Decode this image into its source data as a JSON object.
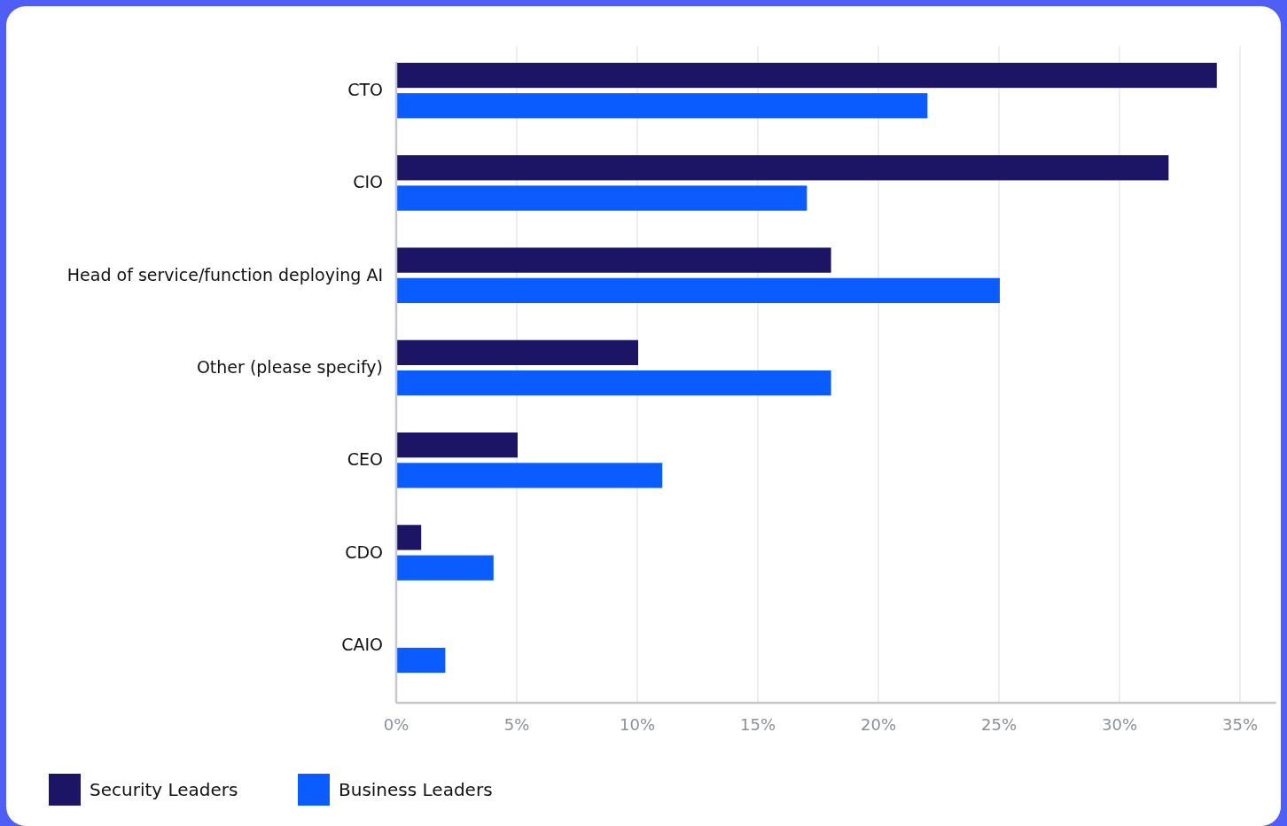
{
  "chart_data": {
    "type": "bar",
    "orientation": "horizontal",
    "categories": [
      "CTO",
      "CIO",
      "Head of service/function deploying AI",
      "Other (please specify)",
      "CEO",
      "CDO",
      "CAIO"
    ],
    "series": [
      {
        "name": "Security Leaders",
        "color": "#1c1464",
        "values": [
          34,
          32,
          18,
          10,
          5,
          1,
          0
        ]
      },
      {
        "name": "Business Leaders",
        "color": "#0a5cff",
        "values": [
          22,
          17,
          25,
          18,
          11,
          4,
          2
        ]
      }
    ],
    "xlim": [
      0,
      36.5
    ],
    "xticks": [
      {
        "value": 0,
        "label": "0%"
      },
      {
        "value": 5,
        "label": "5%"
      },
      {
        "value": 10,
        "label": "10%"
      },
      {
        "value": 15,
        "label": "15%"
      },
      {
        "value": 20,
        "label": "20%"
      },
      {
        "value": 25,
        "label": "25%"
      },
      {
        "value": 30,
        "label": "30%"
      },
      {
        "value": 35,
        "label": "35%"
      }
    ],
    "grid": "x",
    "legend": "bottom left"
  }
}
